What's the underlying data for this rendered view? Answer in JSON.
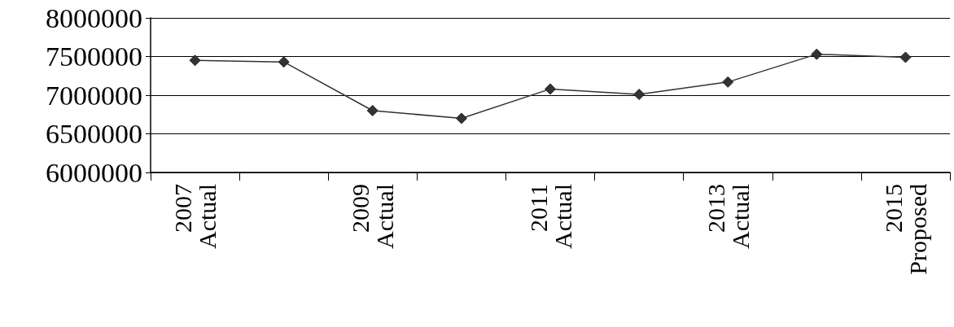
{
  "chart_data": {
    "type": "line",
    "categories": [
      "2007\nActual",
      null,
      "2009\nActual",
      null,
      "2011\nActual",
      null,
      "2013\nActual",
      null,
      "2015\nProposed"
    ],
    "series": [
      {
        "color": "#333333",
        "values": [
          7450000,
          7430000,
          6800000,
          6700000,
          7080000,
          7010000,
          7170000,
          7530000,
          7490000
        ]
      }
    ],
    "ylim": [
      6000000,
      8000000
    ],
    "yticks": [
      6000000,
      6500000,
      7000000,
      7500000,
      8000000
    ],
    "grid": "y",
    "marker": "diamond",
    "line_style": "solid"
  }
}
